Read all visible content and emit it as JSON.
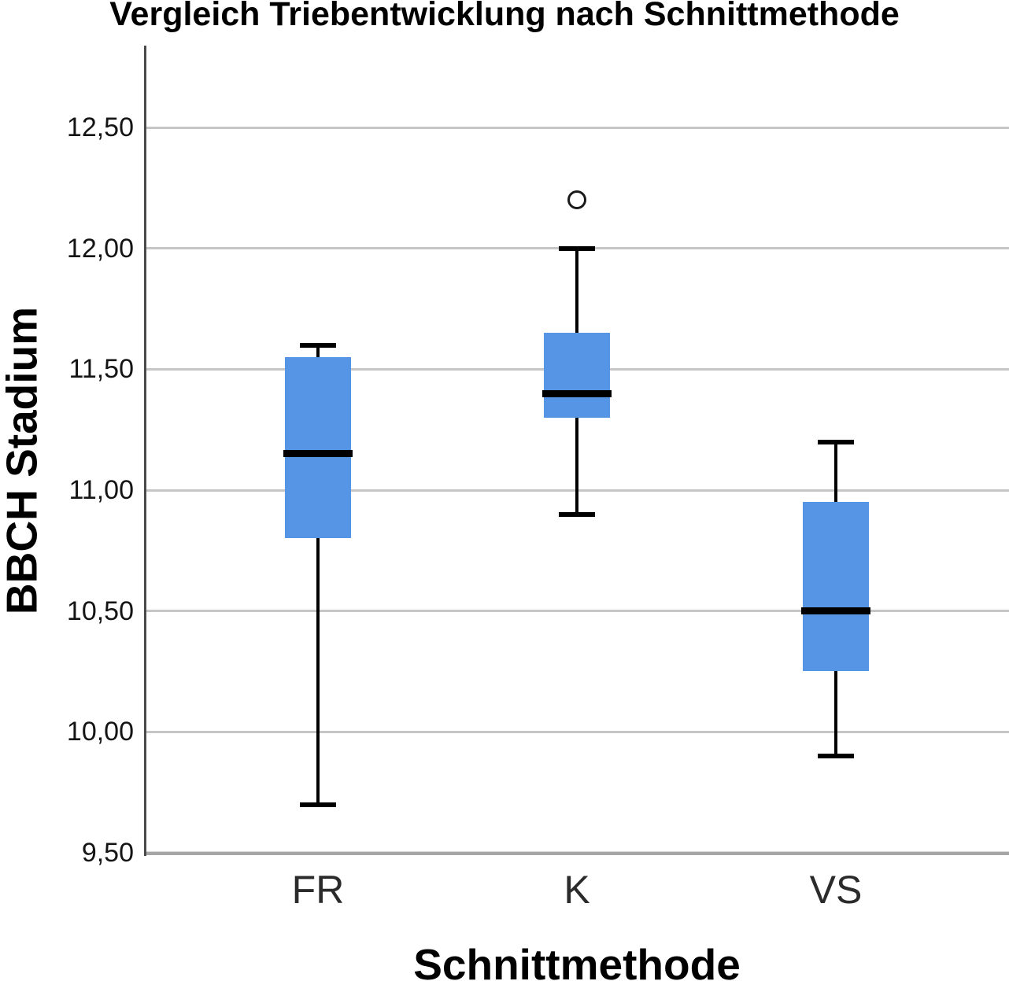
{
  "title": "Vergleich Triebentwicklung nach Schnittmethode",
  "y_axis": {
    "label": "BBCH Stadium",
    "tick_labels": [
      "9,50",
      "10,00",
      "10,50",
      "11,00",
      "11,50",
      "12,00",
      "12,50"
    ]
  },
  "x_axis": {
    "label": "Schnittmethode",
    "categories": [
      "FR",
      "K",
      "VS"
    ]
  },
  "colors": {
    "box_fill": "#5694e6",
    "median_line": "#000000",
    "whisker": "#000000",
    "gridline": "#c6c6c6",
    "y_axis_line": "#4a4a4a",
    "x_axis_line": "#a5a5a5",
    "outlier_stroke": "#1a1a1a"
  },
  "chart_data": {
    "type": "boxplot",
    "title": "Vergleich Triebentwicklung nach Schnittmethode",
    "xlabel": "Schnittmethode",
    "ylabel": "BBCH Stadium",
    "categories": [
      "FR",
      "K",
      "VS"
    ],
    "ylim": [
      9.5,
      12.8
    ],
    "y_tick_values": [
      9.5,
      10.0,
      10.5,
      11.0,
      11.5,
      12.0,
      12.5
    ],
    "y_tick_labels": [
      "9,50",
      "10,00",
      "10,50",
      "11,00",
      "11,50",
      "12,00",
      "12,50"
    ],
    "decimal_separator": ",",
    "grid": "horizontal",
    "legend": "none",
    "series": [
      {
        "name": "FR",
        "whisker_low": 9.7,
        "q1": 10.8,
        "median": 11.15,
        "q3": 11.55,
        "whisker_high": 11.6,
        "outliers": []
      },
      {
        "name": "K",
        "whisker_low": 10.9,
        "q1": 11.3,
        "median": 11.4,
        "q3": 11.65,
        "whisker_high": 12.0,
        "outliers": [
          12.2
        ]
      },
      {
        "name": "VS",
        "whisker_low": 9.9,
        "q1": 10.25,
        "median": 10.5,
        "q3": 10.95,
        "whisker_high": 11.2,
        "outliers": []
      }
    ]
  }
}
